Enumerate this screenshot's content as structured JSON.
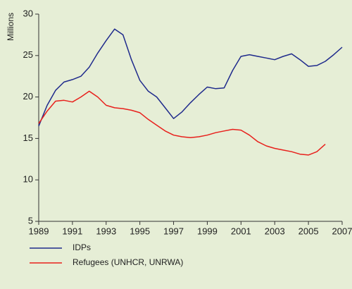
{
  "chart_data": {
    "type": "line",
    "y_label": "Millions",
    "x": [
      1989,
      1989.5,
      1990,
      1990.5,
      1991,
      1991.5,
      1992,
      1992.5,
      1993,
      1993.5,
      1994,
      1994.5,
      1995,
      1995.5,
      1996,
      1996.5,
      1997,
      1997.5,
      1998,
      1998.5,
      1999,
      1999.5,
      2000,
      2000.5,
      2001,
      2001.5,
      2002,
      2002.5,
      2003,
      2003.5,
      2004,
      2004.5,
      2005,
      2005.5,
      2006,
      2006.5,
      2007
    ],
    "series": [
      {
        "name": "IDPs",
        "color": "#1f2a8c",
        "values": [
          16.5,
          19,
          20.8,
          21.8,
          22.1,
          22.5,
          23.6,
          25.3,
          26.8,
          28.2,
          27.5,
          24.5,
          22,
          20.7,
          20,
          18.7,
          17.4,
          18.2,
          19.3,
          20.3,
          21.2,
          21,
          21.1,
          23.2,
          24.9,
          25.1,
          24.9,
          24.7,
          24.5,
          24.9,
          25.2,
          24.5,
          23.7,
          23.8,
          24.3,
          25.1,
          26
        ]
      },
      {
        "name": "Refugees (UNHCR, UNRWA)",
        "color": "#e8201c",
        "values": [
          16.8,
          18.3,
          19.5,
          19.6,
          19.4,
          20,
          20.7,
          20,
          19,
          18.7,
          18.6,
          18.4,
          18.1,
          17.3,
          16.6,
          15.9,
          15.4,
          15.2,
          15.1,
          15.2,
          15.4,
          15.7,
          15.9,
          16.1,
          16,
          15.4,
          14.6,
          14.1,
          13.8,
          13.6,
          13.4,
          13.1,
          13,
          13.4,
          14.3,
          null,
          null
        ]
      }
    ],
    "xlim": [
      1989,
      2007
    ],
    "xticks": [
      1989,
      1991,
      1993,
      1995,
      1997,
      1999,
      2001,
      2003,
      2005,
      2007
    ],
    "ylim": [
      5,
      30
    ],
    "yticks": [
      5,
      10,
      15,
      20,
      25,
      30
    ],
    "grid": false,
    "legend": "bottom"
  }
}
